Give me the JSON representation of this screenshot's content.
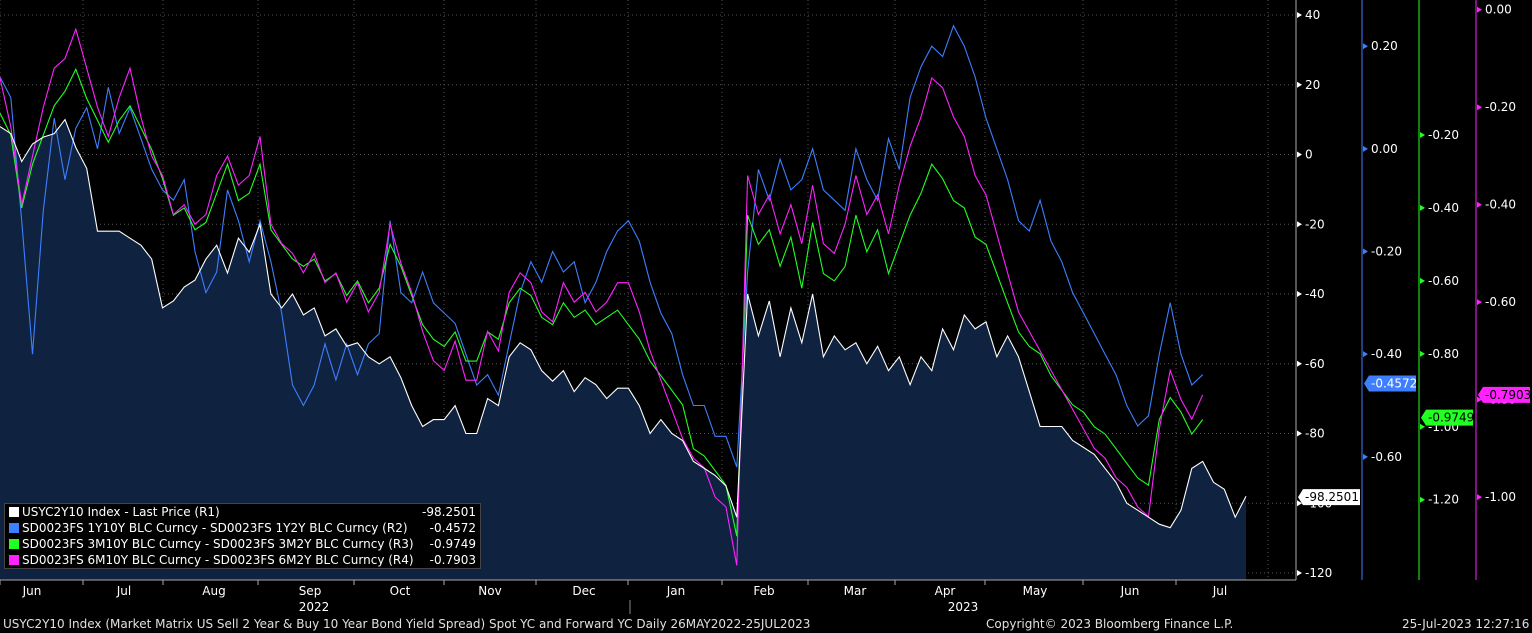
{
  "chart_data": {
    "type": "line",
    "x_labels": [
      "Jun",
      "Jul",
      "Aug",
      "Sep",
      "Oct",
      "Nov",
      "Dec",
      "Jan",
      "Feb",
      "Mar",
      "Apr",
      "May",
      "Jun",
      "Jul"
    ],
    "year_labels": [
      "2022",
      "2023"
    ],
    "axes": {
      "R1": {
        "ticks": [
          40,
          20,
          0,
          -20,
          -40,
          -60,
          -80,
          -100,
          -120
        ],
        "ylim": [
          -120,
          44
        ],
        "color": "#ffffff"
      },
      "R2": {
        "ticks": [
          "0.20",
          "0.00",
          "-0.20",
          "-0.40",
          "-0.60"
        ],
        "ylim": [
          -0.84,
          0.29
        ],
        "color": "#3d7fff"
      },
      "R3": {
        "ticks": [
          "-0.20",
          "-0.40",
          "-0.60",
          "-0.80",
          "-1.00",
          "-1.20"
        ],
        "ylim": [
          -1.42,
          0.17
        ],
        "color": "#22ff22"
      },
      "R4": {
        "ticks": [
          "0.00",
          "-0.20",
          "-0.40",
          "-0.60",
          "-0.80",
          "-1.00"
        ],
        "ylim": [
          -1.17,
          0.02
        ],
        "color": "#ff22ff"
      }
    },
    "series": [
      {
        "name": "USYC2Y10 Index - Last Price (R1)",
        "last": "-98.2501",
        "axis": "R1",
        "color": "#ffffff",
        "area": true,
        "values": [
          8,
          6,
          -2,
          3,
          5,
          6,
          10,
          2,
          -4,
          -22,
          -22,
          -22,
          -24,
          -26,
          -30,
          -44,
          -42,
          -38,
          -36,
          -30,
          -26,
          -34,
          -24,
          -28,
          -20,
          -40,
          -44,
          -40,
          -46,
          -44,
          -52,
          -50,
          -55,
          -54,
          -58,
          -60,
          -58,
          -64,
          -72,
          -78,
          -76,
          -76,
          -72,
          -80,
          -80,
          -70,
          -72,
          -58,
          -54,
          -56,
          -62,
          -65,
          -62,
          -68,
          -64,
          -66,
          -70,
          -67,
          -67,
          -72,
          -80,
          -76,
          -80,
          -82,
          -88,
          -90,
          -92,
          -95,
          -104,
          -40,
          -52,
          -42,
          -58,
          -44,
          -54,
          -40,
          -58,
          -52,
          -56,
          -54,
          -60,
          -55,
          -62,
          -58,
          -66,
          -58,
          -62,
          -50,
          -56,
          -46,
          -50,
          -48,
          -58,
          -52,
          -58,
          -68,
          -78,
          -78,
          -78,
          -82,
          -84,
          -86,
          -90,
          -94,
          -100,
          -102,
          -104,
          -106,
          -107,
          -102,
          -90,
          -88,
          -94,
          -96,
          -104,
          -98
        ]
      },
      {
        "name": "SD0023FS 1Y10Y BLC Curncy - SD0023FS 1Y2Y BLC Curncy (R2)",
        "last": "-0.4572",
        "axis": "R2",
        "color": "#3d7fff",
        "values": [
          0.14,
          0.1,
          -0.14,
          -0.4,
          -0.12,
          0.06,
          -0.06,
          0.04,
          0.08,
          0.0,
          0.12,
          0.03,
          0.08,
          0.02,
          -0.04,
          -0.08,
          -0.1,
          -0.06,
          -0.2,
          -0.28,
          -0.24,
          -0.08,
          -0.14,
          -0.22,
          -0.14,
          -0.22,
          -0.32,
          -0.46,
          -0.5,
          -0.46,
          -0.38,
          -0.45,
          -0.38,
          -0.44,
          -0.38,
          -0.36,
          -0.14,
          -0.28,
          -0.3,
          -0.24,
          -0.3,
          -0.32,
          -0.34,
          -0.4,
          -0.46,
          -0.44,
          -0.48,
          -0.38,
          -0.28,
          -0.22,
          -0.26,
          -0.2,
          -0.24,
          -0.22,
          -0.3,
          -0.26,
          -0.2,
          -0.16,
          -0.14,
          -0.18,
          -0.26,
          -0.32,
          -0.36,
          -0.44,
          -0.5,
          -0.5,
          -0.56,
          -0.56,
          -0.62,
          -0.24,
          -0.04,
          -0.1,
          -0.02,
          -0.08,
          -0.06,
          0.0,
          -0.08,
          -0.1,
          -0.12,
          0.0,
          -0.06,
          -0.1,
          0.02,
          -0.04,
          0.1,
          0.16,
          0.2,
          0.18,
          0.24,
          0.2,
          0.14,
          0.06,
          0.0,
          -0.06,
          -0.14,
          -0.16,
          -0.1,
          -0.18,
          -0.22,
          -0.28,
          -0.32,
          -0.36,
          -0.4,
          -0.44,
          -0.5,
          -0.54,
          -0.52,
          -0.4,
          -0.3,
          -0.4,
          -0.46,
          -0.44
        ]
      },
      {
        "name": "SD0023FS 3M10Y BLC Curncy - SD0023FS 3M2Y BLC Curncy (R3)",
        "last": "-0.9749",
        "axis": "R3",
        "color": "#22ff22",
        "values": [
          -0.14,
          -0.2,
          -0.4,
          -0.28,
          -0.2,
          -0.12,
          -0.08,
          -0.02,
          -0.1,
          -0.16,
          -0.22,
          -0.16,
          -0.12,
          -0.18,
          -0.24,
          -0.32,
          -0.42,
          -0.4,
          -0.46,
          -0.44,
          -0.36,
          -0.28,
          -0.38,
          -0.36,
          -0.28,
          -0.46,
          -0.5,
          -0.54,
          -0.56,
          -0.54,
          -0.6,
          -0.58,
          -0.64,
          -0.6,
          -0.66,
          -0.62,
          -0.5,
          -0.56,
          -0.64,
          -0.72,
          -0.76,
          -0.78,
          -0.74,
          -0.82,
          -0.82,
          -0.74,
          -0.76,
          -0.66,
          -0.62,
          -0.64,
          -0.7,
          -0.72,
          -0.66,
          -0.7,
          -0.68,
          -0.72,
          -0.7,
          -0.68,
          -0.72,
          -0.76,
          -0.82,
          -0.86,
          -0.9,
          -0.94,
          -1.06,
          -1.08,
          -1.12,
          -1.16,
          -1.3,
          -0.42,
          -0.5,
          -0.46,
          -0.56,
          -0.48,
          -0.62,
          -0.44,
          -0.58,
          -0.6,
          -0.56,
          -0.42,
          -0.52,
          -0.46,
          -0.58,
          -0.5,
          -0.42,
          -0.36,
          -0.28,
          -0.32,
          -0.38,
          -0.4,
          -0.48,
          -0.5,
          -0.58,
          -0.66,
          -0.74,
          -0.78,
          -0.8,
          -0.86,
          -0.9,
          -0.94,
          -0.96,
          -1.0,
          -1.02,
          -1.06,
          -1.1,
          -1.14,
          -1.16,
          -0.98,
          -0.92,
          -0.96,
          -1.02,
          -0.98
        ]
      },
      {
        "name": "SD0023FS 6M10Y BLC Curncy - SD0023FS 6M2Y BLC Curncy (R4)",
        "last": "-0.7903",
        "axis": "R4",
        "color": "#ff22ff",
        "values": [
          -0.14,
          -0.24,
          -0.4,
          -0.3,
          -0.2,
          -0.12,
          -0.1,
          -0.04,
          -0.12,
          -0.2,
          -0.26,
          -0.18,
          -0.12,
          -0.22,
          -0.3,
          -0.34,
          -0.42,
          -0.4,
          -0.44,
          -0.42,
          -0.34,
          -0.3,
          -0.36,
          -0.34,
          -0.26,
          -0.44,
          -0.48,
          -0.5,
          -0.54,
          -0.5,
          -0.56,
          -0.54,
          -0.6,
          -0.56,
          -0.62,
          -0.58,
          -0.44,
          -0.52,
          -0.58,
          -0.66,
          -0.72,
          -0.74,
          -0.68,
          -0.76,
          -0.76,
          -0.66,
          -0.7,
          -0.58,
          -0.54,
          -0.56,
          -0.62,
          -0.64,
          -0.56,
          -0.6,
          -0.58,
          -0.62,
          -0.6,
          -0.56,
          -0.56,
          -0.62,
          -0.7,
          -0.76,
          -0.82,
          -0.88,
          -0.92,
          -0.94,
          -1.0,
          -1.02,
          -1.14,
          -0.34,
          -0.42,
          -0.38,
          -0.46,
          -0.4,
          -0.48,
          -0.36,
          -0.48,
          -0.5,
          -0.44,
          -0.34,
          -0.42,
          -0.38,
          -0.46,
          -0.36,
          -0.28,
          -0.22,
          -0.14,
          -0.16,
          -0.22,
          -0.26,
          -0.34,
          -0.38,
          -0.46,
          -0.54,
          -0.62,
          -0.66,
          -0.7,
          -0.74,
          -0.78,
          -0.82,
          -0.86,
          -0.9,
          -0.92,
          -0.96,
          -0.98,
          -1.02,
          -1.04,
          -0.86,
          -0.74,
          -0.8,
          -0.84,
          -0.79
        ]
      }
    ]
  },
  "footer": {
    "left": "USYC2Y10 Index (Market Matrix US Sell 2 Year & Buy 10 Year Bond Yield Spread) Spot YC and Forward YC  Daily 26MAY2022-25JUL2023",
    "center": "Copyright© 2023 Bloomberg Finance L.P.",
    "right": "25-Jul-2023 12:27:16"
  }
}
